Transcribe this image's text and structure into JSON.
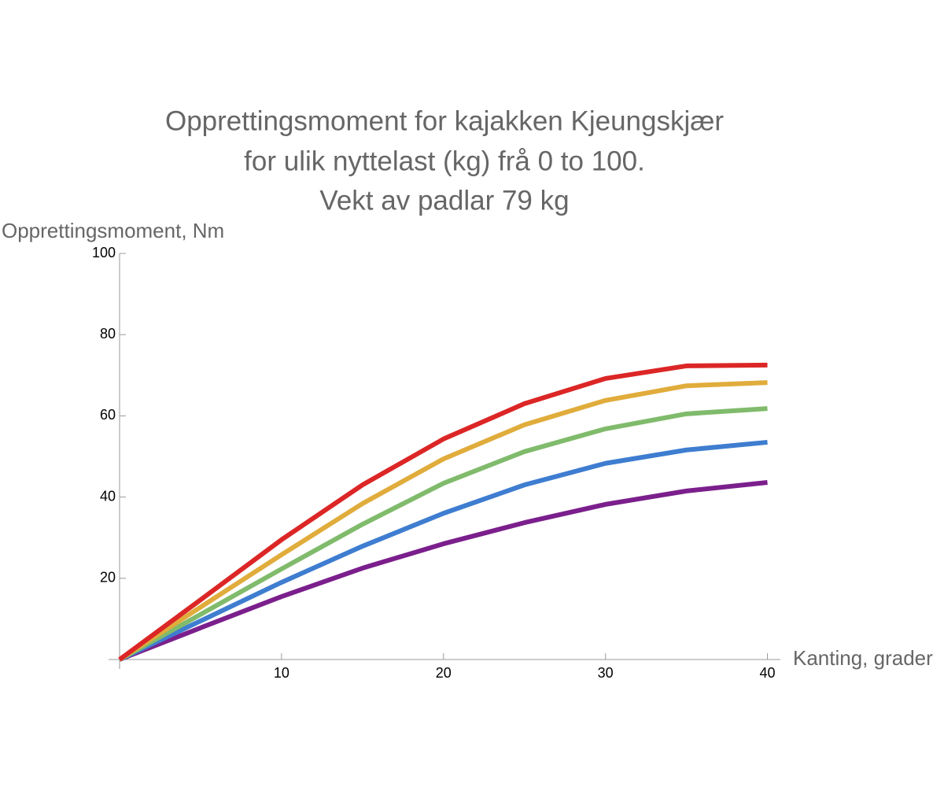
{
  "chart_data": {
    "type": "line",
    "title": [
      "Opprettingsmoment for kajakken Kjeungskjær",
      "for ulik nyttelast (kg) frå 0 to 100.",
      "Vekt av padlar 79 kg"
    ],
    "y_label": "Opprettingsmoment, Nm",
    "x_label": "Kanting, grader",
    "x": [
      0,
      5,
      10,
      15,
      20,
      25,
      30,
      35,
      40
    ],
    "series": [
      {
        "color": "#7b1f8c",
        "values": [
          0,
          7.8,
          15.5,
          22.5,
          28.5,
          33.7,
          38.2,
          41.5,
          43.6
        ]
      },
      {
        "color": "#3e7dd0",
        "values": [
          0,
          9.5,
          19.0,
          27.9,
          36.0,
          43.0,
          48.3,
          51.6,
          53.5
        ]
      },
      {
        "color": "#80bb6c",
        "values": [
          0,
          11.1,
          22.3,
          33.3,
          43.4,
          51.2,
          56.8,
          60.5,
          61.8
        ]
      },
      {
        "color": "#e0ac3b",
        "values": [
          0,
          12.9,
          25.8,
          38.4,
          49.4,
          57.8,
          63.8,
          67.4,
          68.2
        ]
      },
      {
        "color": "#dc2626",
        "values": [
          0,
          14.7,
          29.5,
          43.0,
          54.3,
          63.0,
          69.2,
          72.3,
          72.5
        ]
      }
    ],
    "xlim": [
      0,
      40.8
    ],
    "ylim": [
      0,
      100
    ],
    "xticks": [
      10,
      20,
      30,
      40
    ],
    "yticks": [
      20,
      40,
      60,
      80,
      100
    ]
  }
}
